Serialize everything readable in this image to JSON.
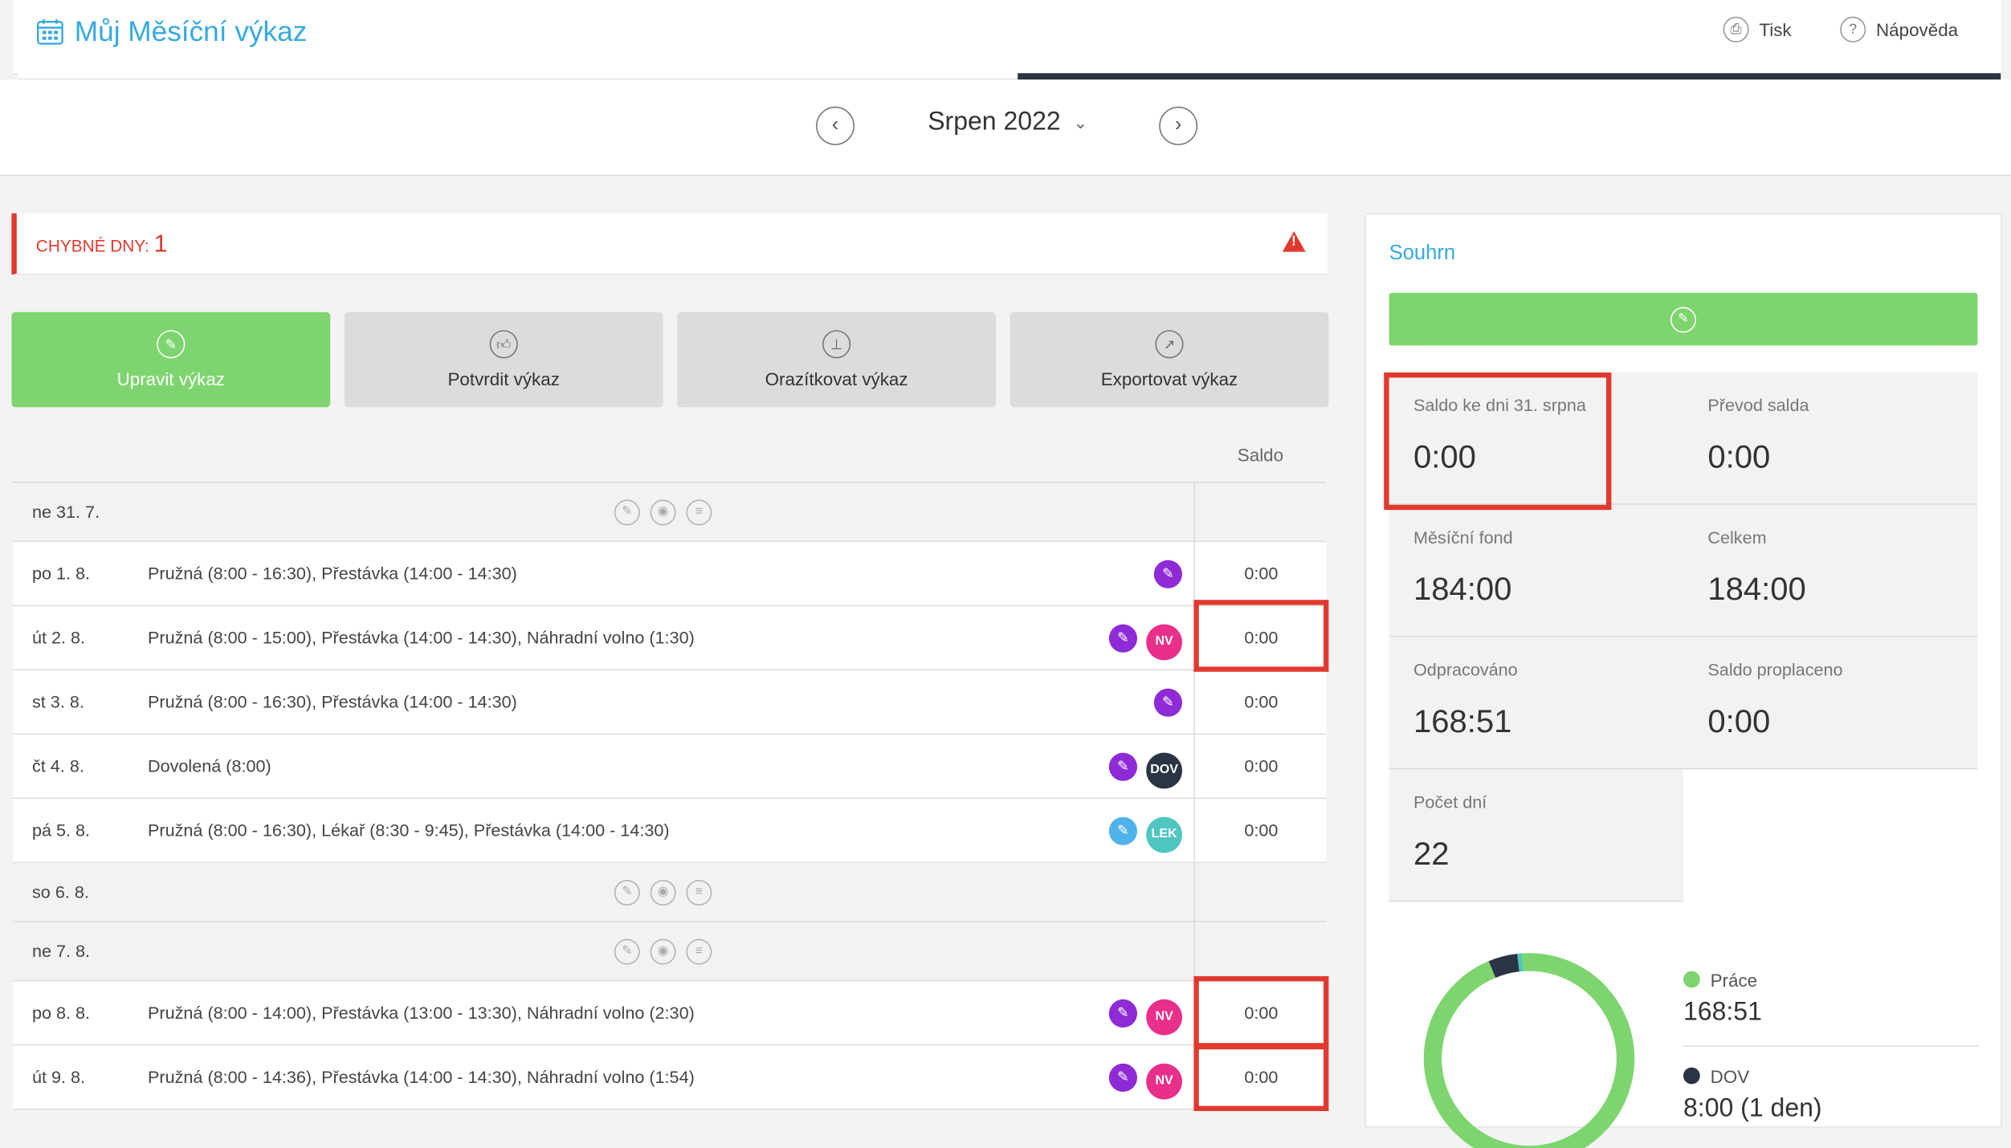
{
  "app": {
    "title": "Můj Měsíční výkaz"
  },
  "toolbar": {
    "print_label": "Tisk",
    "help_label": "Nápověda"
  },
  "month": {
    "label": "Srpen 2022"
  },
  "errors": {
    "label": "Chybné dny:",
    "count": "1"
  },
  "actions": [
    {
      "label": "Upravit výkaz"
    },
    {
      "label": "Potvrdit výkaz"
    },
    {
      "label": "Orazítkovat výkaz"
    },
    {
      "label": "Exportovat výkaz"
    }
  ],
  "table": {
    "saldo_header": "Saldo",
    "rows": [
      {
        "date": "ne 31. 7.",
        "desc": "",
        "saldo": ""
      },
      {
        "date": "po 1. 8.",
        "desc": "Pružná (8:00 - 16:30), Přestávka (14:00 - 14:30)",
        "saldo": "0:00"
      },
      {
        "date": "út 2. 8.",
        "desc": "Pružná (8:00 - 15:00), Přestávka (14:00 - 14:30), Náhradní volno (1:30)",
        "saldo": "0:00",
        "badge": "NV"
      },
      {
        "date": "st 3. 8.",
        "desc": "Pružná (8:00 - 16:30), Přestávka (14:00 - 14:30)",
        "saldo": "0:00"
      },
      {
        "date": "čt 4. 8.",
        "desc": "Dovolená (8:00)",
        "saldo": "0:00",
        "badge": "DOV"
      },
      {
        "date": "pá 5. 8.",
        "desc": "Pružná (8:00 - 16:30), Lékař (8:30 - 9:45), Přestávka (14:00 - 14:30)",
        "saldo": "0:00",
        "badge": "LEK"
      },
      {
        "date": "so 6. 8.",
        "desc": "",
        "saldo": ""
      },
      {
        "date": "ne 7. 8.",
        "desc": "",
        "saldo": ""
      },
      {
        "date": "po 8. 8.",
        "desc": "Pružná (8:00 - 14:00), Přestávka (13:00 - 13:30), Náhradní volno (2:30)",
        "saldo": "0:00",
        "badge": "NV"
      },
      {
        "date": "út 9. 8.",
        "desc": "Pružná (8:00 - 14:36), Přestávka (14:00 - 14:30), Náhradní volno (1:54)",
        "saldo": "0:00",
        "badge": "NV"
      }
    ]
  },
  "summary": {
    "title": "Souhrn",
    "stats": [
      {
        "label": "Saldo ke dni 31. srpna",
        "value": "0:00"
      },
      {
        "label": "Převod salda",
        "value": "0:00"
      },
      {
        "label": "Měsíční fond",
        "value": "184:00"
      },
      {
        "label": "Celkem",
        "value": "184:00"
      },
      {
        "label": "Odpracováno",
        "value": "168:51"
      },
      {
        "label": "Saldo proplaceno",
        "value": "0:00"
      },
      {
        "label": "Počet dní",
        "value": "22"
      }
    ],
    "legend": [
      {
        "label": "Práce",
        "value": "168:51",
        "color": "#7ed56f"
      },
      {
        "label": "DOV",
        "value": "8:00 (1 den)",
        "color": "#2b3442"
      }
    ],
    "donut": {
      "prace_hours": 168.85,
      "dov_hours": 8,
      "lek_hours": 1.25
    }
  }
}
